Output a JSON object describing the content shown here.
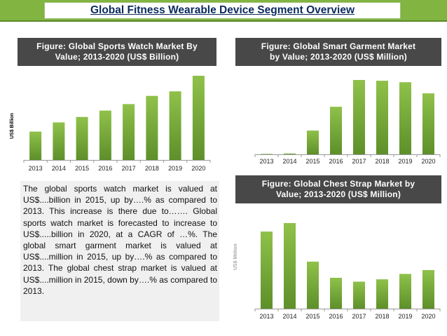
{
  "header": {
    "title": "Global Fitness Wearable Device Segment Overview"
  },
  "figures": [
    {
      "title_line1": "Figure: Global Sports Watch Market By",
      "title_line2": "Value; 2013-2020 (US$ Billion)",
      "ylabel": "US$ Billion"
    },
    {
      "title_line1": "Figure: Global Smart Garment Market",
      "title_line2": "by Value; 2013-2020 (US$ Million)"
    },
    {
      "title_line1": "Figure: Global Chest Strap Market by",
      "title_line2": "Value; 2013-2020 (US$ Million)",
      "ylabel": "US$ Million"
    }
  ],
  "description": "The global sports watch market is valued at US$....billion in 2015, up by….% as compared to 2013. This increase is there due to……. Global sports watch market is forecasted to increase to US$.....billion in 2020, at a CAGR of …%. The global smart garment market is valued at US$....million in 2015, up by….% as compared to 2013. The global chest strap market is valued at US$....million in 2015, down by….% as compared to 2013.",
  "colors": {
    "bar_top": "#8fc14a",
    "bar_bottom": "#5e8f2a",
    "title_bg": "#484848",
    "banner": "#81b441"
  },
  "chart_data": [
    {
      "type": "bar",
      "title": "Figure: Global Sports Watch Market By Value; 2013-2020 (US$ Billion)",
      "ylabel": "US$ Billion",
      "categories": [
        "2013",
        "2014",
        "2015",
        "2016",
        "2017",
        "2018",
        "2019",
        "2020"
      ],
      "values": [
        3.1,
        4.1,
        4.7,
        5.4,
        6.1,
        7.0,
        7.5,
        9.2
      ],
      "ylim": [
        0,
        9.2
      ],
      "grid": false
    },
    {
      "type": "bar",
      "title": "Figure: Global Smart Garment Market by Value; 2013-2020 (US$ Million)",
      "categories": [
        "2013",
        "2014",
        "2015",
        "2016",
        "2017",
        "2018",
        "2019",
        "2020"
      ],
      "values": [
        0.3,
        1,
        32,
        64,
        100,
        99,
        97,
        82
      ],
      "ylim": [
        0,
        100
      ],
      "grid": false
    },
    {
      "type": "bar",
      "title": "Figure: Global Chest Strap Market by Value; 2013-2020 (US$ Million)",
      "ylabel": "US$ Million",
      "categories": [
        "2013",
        "2014",
        "2015",
        "2016",
        "2017",
        "2018",
        "2019",
        "2020"
      ],
      "values": [
        100,
        111,
        61,
        40,
        35,
        38,
        45,
        50
      ],
      "ylim": [
        0,
        111
      ],
      "grid": false
    }
  ]
}
